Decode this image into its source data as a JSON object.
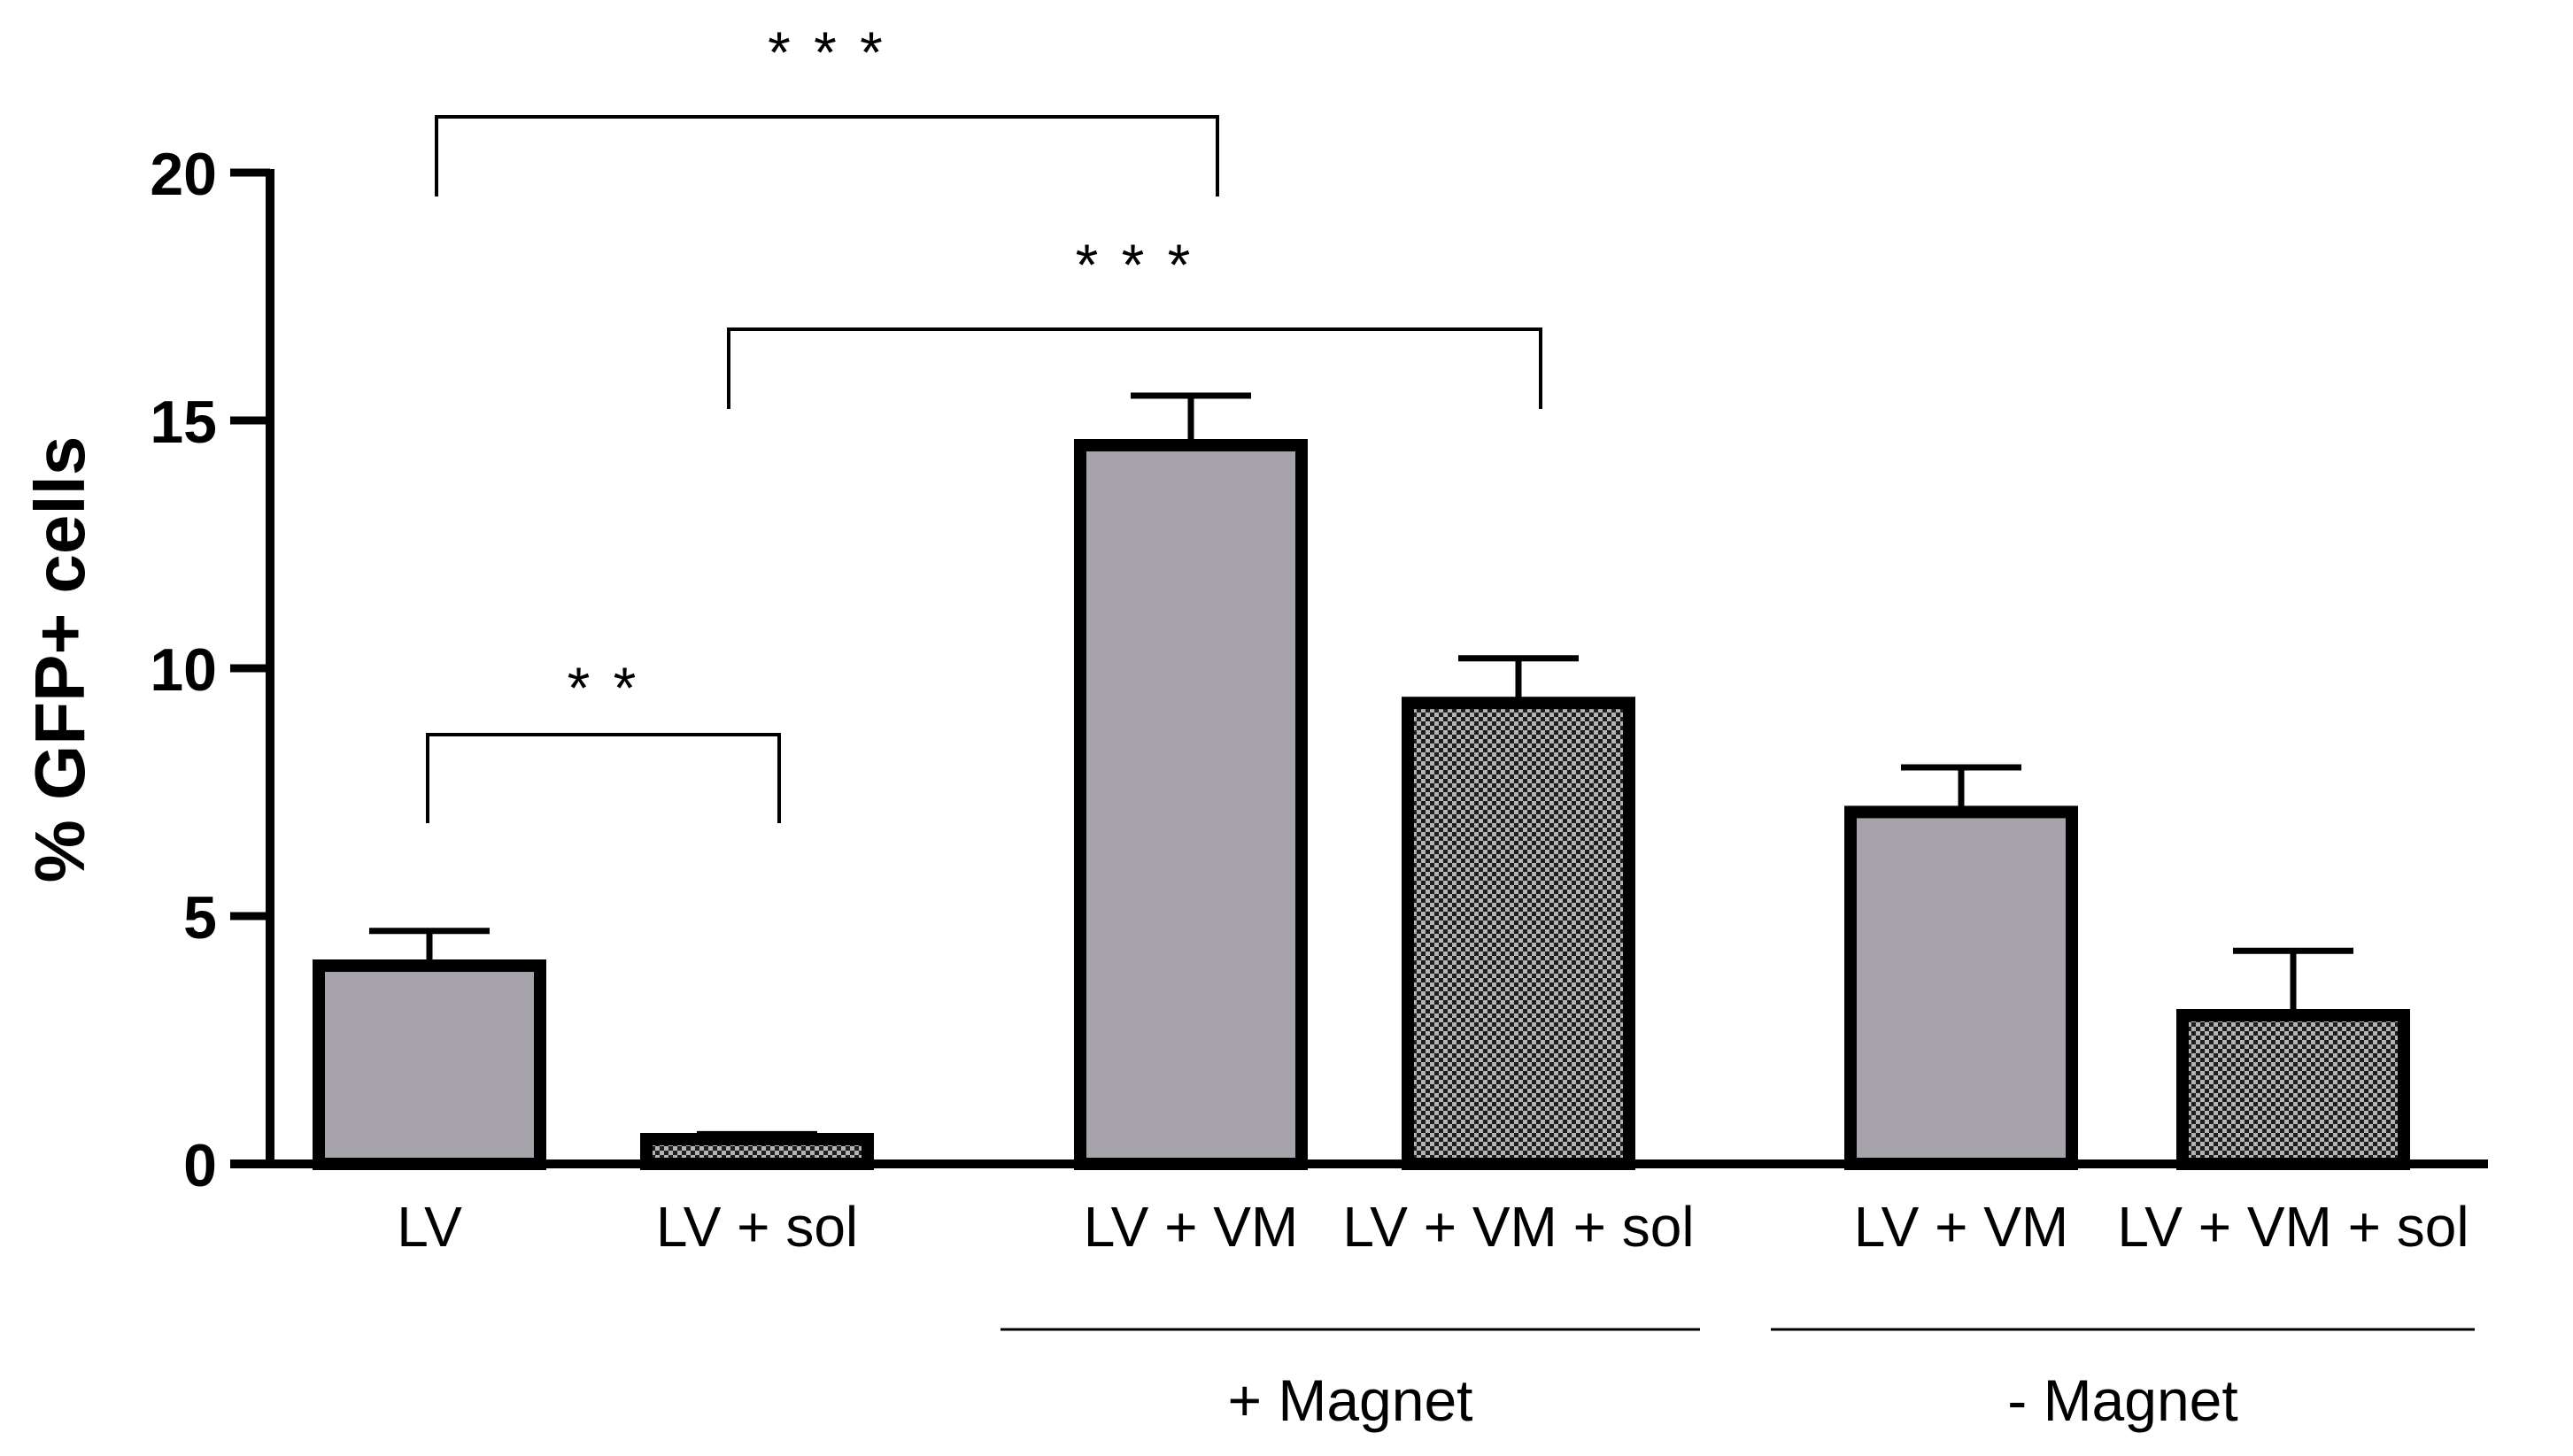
{
  "chart_data": {
    "type": "bar",
    "title": "",
    "ylabel": "% GFP+ cells",
    "ylim": [
      0,
      20
    ],
    "yticks": [
      0,
      5,
      10,
      15,
      20
    ],
    "categories": [
      "LV",
      "LV + sol",
      "LV + VM",
      "LV + VM + sol",
      "LV + VM",
      "LV + VM + sol"
    ],
    "values": [
      4.0,
      0.5,
      14.5,
      9.3,
      7.1,
      3.0
    ],
    "errors": [
      0.7,
      0.1,
      1.0,
      0.9,
      0.9,
      1.3
    ],
    "fill_pattern": [
      "solid",
      "checker",
      "solid",
      "checker",
      "solid",
      "checker"
    ],
    "groups": [
      {
        "label": "+ Magnet",
        "categories": [
          2,
          3
        ]
      },
      {
        "label": "- Magnet",
        "categories": [
          4,
          5
        ]
      }
    ],
    "significance": [
      {
        "from": 0,
        "to": 1,
        "label": "* *"
      },
      {
        "from": 0,
        "to": 2,
        "label": "* * *"
      },
      {
        "from": 1,
        "to": 3,
        "label": "* * *"
      }
    ],
    "grid": false,
    "legend": "none",
    "colors": {
      "solid_fill": "#a6a4aa",
      "checker_dark": "#1e1e1e",
      "checker_light": "#b3b3b3",
      "stroke": "#000000"
    }
  }
}
